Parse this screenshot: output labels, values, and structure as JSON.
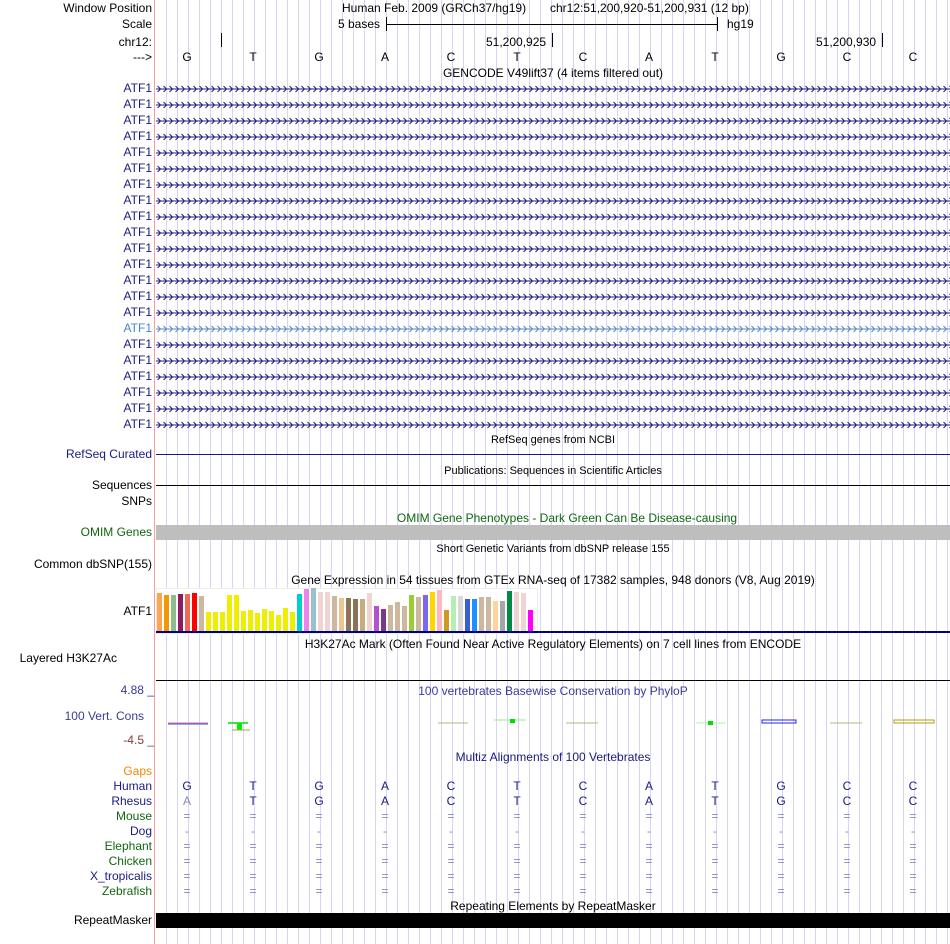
{
  "header": {
    "window_position_label": "Window Position",
    "assembly": "Human Feb. 2009 (GRCh37/hg19)",
    "position": "chr12:51,200,920-51,200,931 (12 bp)",
    "scale_label": "Scale",
    "scale_text": "5 bases",
    "scale_db": "hg19",
    "chrom_label": "chr12:",
    "tick1": "51,200,925",
    "tick2": "51,200,930",
    "strand_label": "--->",
    "bases": [
      "G",
      "T",
      "G",
      "A",
      "C",
      "T",
      "C",
      "A",
      "T",
      "G",
      "C",
      "C"
    ]
  },
  "gencode": {
    "title": "GENCODE V49lift37 (4 items filtered out)",
    "items": [
      "ATF1",
      "ATF1",
      "ATF1",
      "ATF1",
      "ATF1",
      "ATF1",
      "ATF1",
      "ATF1",
      "ATF1",
      "ATF1",
      "ATF1",
      "ATF1",
      "ATF1",
      "ATF1",
      "ATF1",
      "ATF1",
      "ATF1",
      "ATF1",
      "ATF1",
      "ATF1",
      "ATF1",
      "ATF1"
    ],
    "highlighted_index": 15
  },
  "refseq": {
    "title": "RefSeq genes from NCBI",
    "label": "RefSeq Curated"
  },
  "publications": {
    "title": "Publications: Sequences in Scientific Articles",
    "label": "Sequences",
    "label2": "SNPs"
  },
  "omim": {
    "title": "OMIM Gene Phenotypes - Dark Green Can Be Disease-causing",
    "label": "OMIM Genes"
  },
  "dbsnp": {
    "title": "Short Genetic Variants from dbSNP release 155",
    "label": "Common dbSNP(155)"
  },
  "gtex": {
    "title": "Gene Expression in 54 tissues from GTEx RNA-seq of 17382 samples, 948 donors (V8, Aug 2019)",
    "label": "ATF1",
    "values": [
      38,
      36,
      36,
      37,
      37,
      38,
      35,
      19,
      19,
      19,
      36,
      36,
      20,
      21,
      18,
      22,
      20,
      16,
      23,
      19,
      37,
      42,
      43,
      39,
      39,
      35,
      33,
      33,
      32,
      32,
      38,
      25,
      22,
      26,
      29,
      25,
      36,
      34,
      36,
      39,
      41,
      21,
      35,
      35,
      32,
      32,
      34,
      34,
      30,
      30,
      40,
      39,
      38,
      21
    ],
    "colors": [
      "#ffa54f",
      "#ee9a00",
      "#8fbc8f",
      "#8b1c62",
      "#ee6a50",
      "#ff0000",
      "#cdb79e",
      "#eeee00",
      "#eeee00",
      "#eeee00",
      "#eeee00",
      "#eeee00",
      "#eeee00",
      "#eeee00",
      "#eeee00",
      "#eeee00",
      "#eeee00",
      "#eeee00",
      "#eeee00",
      "#eeee00",
      "#00cdcd",
      "#ee82ee",
      "#9ac0cd",
      "#eed5d2",
      "#eed5d2",
      "#cdb79e",
      "#eec591",
      "#8b7355",
      "#8b7355",
      "#cdaa7d",
      "#eed5d2",
      "#b452cd",
      "#7a378b",
      "#cdb79e",
      "#cdb79e",
      "#cdb79e",
      "#9acd32",
      "#cdb79e",
      "#7b68ee",
      "#ffd700",
      "#ffb6c1",
      "#cd9b1d",
      "#b4eeb4",
      "#d9d9d9",
      "#3a5fcd",
      "#1e90ff",
      "#cdb79e",
      "#cdb79e",
      "#ffd39b",
      "#a6a6a6",
      "#008b45",
      "#eed5d2",
      "#eed5d2",
      "#ff00ff"
    ]
  },
  "h3k27ac": {
    "title": "H3K27Ac Mark (Often Found Near Active Regulatory Elements) on 7 cell lines from ENCODE",
    "label": "Layered H3K27Ac"
  },
  "phylop": {
    "title": "100 vertebrates Basewise Conservation by PhyloP",
    "label": "100 Vert. Cons",
    "max": "4.88 _",
    "min": "-4.5 _"
  },
  "multiz": {
    "title": "Multiz Alignments of 100 Vertebrates",
    "gaps_label": "Gaps",
    "species": [
      {
        "name": "Human",
        "color": "#1a1a80",
        "bases": [
          "G",
          "T",
          "G",
          "A",
          "C",
          "T",
          "C",
          "A",
          "T",
          "G",
          "C",
          "C"
        ]
      },
      {
        "name": "Rhesus",
        "color": "#1a1a80",
        "bases": [
          "A",
          "T",
          "G",
          "A",
          "C",
          "T",
          "C",
          "A",
          "T",
          "G",
          "C",
          "C"
        ]
      },
      {
        "name": "Mouse",
        "color": "#116611",
        "bases": [
          "=",
          "=",
          "=",
          "=",
          "=",
          "=",
          "=",
          "=",
          "=",
          "=",
          "=",
          "="
        ]
      },
      {
        "name": "Dog",
        "color": "#1a1a80",
        "bases": [
          "-",
          "-",
          "-",
          "-",
          "-",
          "-",
          "-",
          "-",
          "-",
          "-",
          "-",
          "-"
        ]
      },
      {
        "name": "Elephant",
        "color": "#116611",
        "bases": [
          "=",
          "=",
          "=",
          "=",
          "=",
          "=",
          "=",
          "=",
          "=",
          "=",
          "=",
          "="
        ]
      },
      {
        "name": "Chicken",
        "color": "#116611",
        "bases": [
          "=",
          "=",
          "=",
          "=",
          "=",
          "=",
          "=",
          "=",
          "=",
          "=",
          "=",
          "="
        ]
      },
      {
        "name": "X_tropicalis",
        "color": "#1a1a80",
        "bases": [
          "=",
          "=",
          "=",
          "=",
          "=",
          "=",
          "=",
          "=",
          "=",
          "=",
          "=",
          "="
        ]
      },
      {
        "name": "Zebrafish",
        "color": "#116611",
        "bases": [
          "=",
          "=",
          "=",
          "=",
          "=",
          "=",
          "=",
          "=",
          "=",
          "=",
          "=",
          "="
        ]
      }
    ]
  },
  "repeatmasker": {
    "title": "Repeating Elements by RepeatMasker",
    "label": "RepeatMasker"
  }
}
